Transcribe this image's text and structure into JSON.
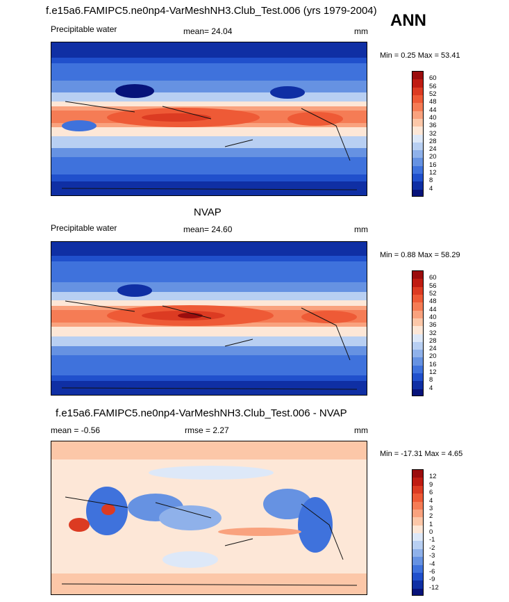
{
  "season": "ANN",
  "panels": [
    {
      "id": "model",
      "title": "f.e15a6.FAMIPC5.ne0np4-VarMeshNH3.Club_Test.006 (yrs 1979-2004)",
      "left_label": "Precipitable water",
      "center_label": "mean=  24.04",
      "right_label": "mm",
      "minmax": "Min =   0.25 Max =  53.41",
      "levels": [
        "60",
        "56",
        "52",
        "48",
        "44",
        "40",
        "36",
        "32",
        "28",
        "24",
        "20",
        "16",
        "12",
        "8",
        "4"
      ],
      "colors": [
        "#9b0d0d",
        "#bf1c12",
        "#dc3b22",
        "#ee5a36",
        "#f57c55",
        "#f9a27e",
        "#fcc7a8",
        "#fde7d7",
        "#dde8f8",
        "#b8cff2",
        "#8fb1ea",
        "#6692e2",
        "#3f72dc",
        "#2050cc",
        "#0f2fa4",
        "#07137a"
      ]
    },
    {
      "id": "obs",
      "title": "NVAP",
      "left_label": "Precipitable water",
      "center_label": "mean=  24.60",
      "right_label": "mm",
      "minmax": "Min =   0.88 Max =  58.29",
      "levels": [
        "60",
        "56",
        "52",
        "48",
        "44",
        "40",
        "36",
        "32",
        "28",
        "24",
        "20",
        "16",
        "12",
        "8",
        "4"
      ],
      "colors": [
        "#9b0d0d",
        "#bf1c12",
        "#dc3b22",
        "#ee5a36",
        "#f57c55",
        "#f9a27e",
        "#fcc7a8",
        "#fde7d7",
        "#dde8f8",
        "#b8cff2",
        "#8fb1ea",
        "#6692e2",
        "#3f72dc",
        "#2050cc",
        "#0f2fa4",
        "#07137a"
      ]
    },
    {
      "id": "diff",
      "title": "f.e15a6.FAMIPC5.ne0np4-VarMeshNH3.Club_Test.006 - NVAP",
      "left_label": "mean =  -0.56",
      "center_label": "rmse =   2.27",
      "right_label": "mm",
      "minmax": "Min = -17.31 Max =   4.65",
      "levels": [
        "12",
        "9",
        "6",
        "4",
        "3",
        "2",
        "1",
        "0",
        "-1",
        "-2",
        "-3",
        "-4",
        "-6",
        "-9",
        "-12"
      ],
      "colors": [
        "#9b0d0d",
        "#bf1c12",
        "#dc3b22",
        "#ee5a36",
        "#f57c55",
        "#f9a27e",
        "#fcc7a8",
        "#fde7d7",
        "#dde8f8",
        "#b8cff2",
        "#8fb1ea",
        "#6692e2",
        "#3f72dc",
        "#2050cc",
        "#0f2fa4",
        "#07137a"
      ]
    }
  ]
}
